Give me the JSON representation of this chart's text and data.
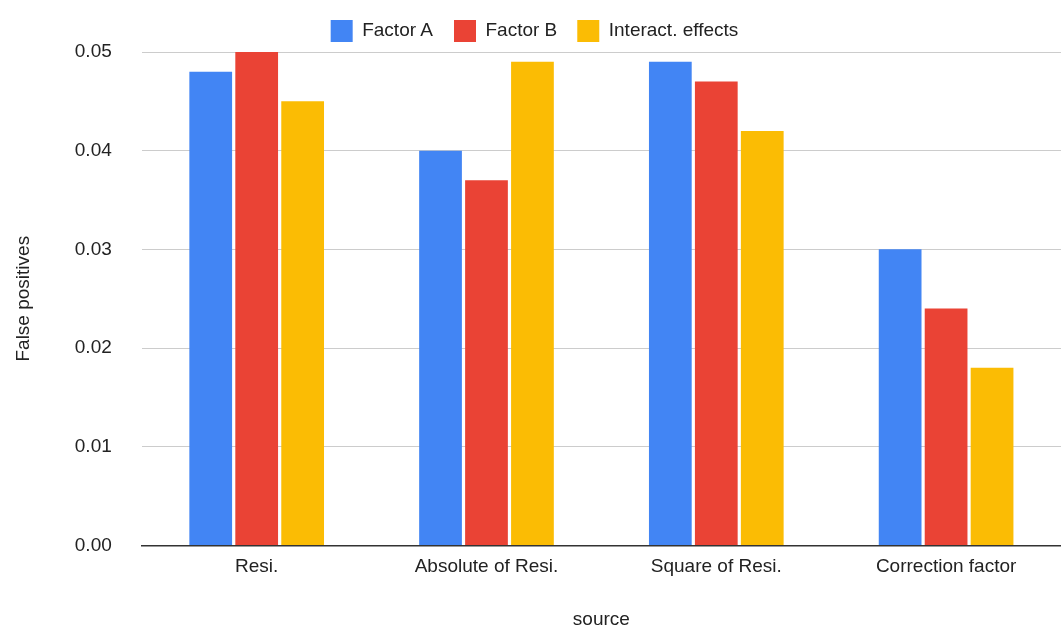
{
  "chart_data": {
    "type": "bar",
    "xlabel": "source",
    "ylabel": "False positives",
    "categories": [
      "Resi.",
      "Absolute of Resi.",
      "Square of Resi.",
      "Correction factor"
    ],
    "series": [
      {
        "name": "Factor A",
        "color": "#4285f4",
        "values": [
          0.048,
          0.04,
          0.049,
          0.03
        ]
      },
      {
        "name": "Factor B",
        "color": "#ea4335",
        "values": [
          0.05,
          0.037,
          0.047,
          0.024
        ]
      },
      {
        "name": "Interact. effects",
        "color": "#fbbc04",
        "values": [
          0.045,
          0.049,
          0.042,
          0.018
        ]
      }
    ],
    "ylim": [
      0,
      0.05
    ],
    "yticks": [
      {
        "value": 0,
        "label": "0.00"
      },
      {
        "value": 0.01,
        "label": "0.01"
      },
      {
        "value": 0.02,
        "label": "0.02"
      },
      {
        "value": 0.03,
        "label": "0.03"
      },
      {
        "value": 0.04,
        "label": "0.04"
      },
      {
        "value": 0.05,
        "label": "0.05"
      }
    ],
    "grid": "y",
    "legend": "top"
  }
}
